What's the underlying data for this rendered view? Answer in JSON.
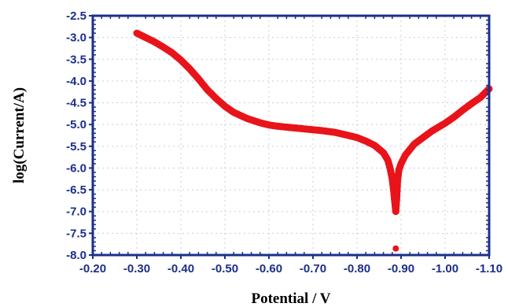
{
  "chart_data": {
    "type": "scatter",
    "title": "",
    "xlabel": "Potential / V",
    "ylabel": "log(Current/A)",
    "xlim": [
      -0.2,
      -1.1
    ],
    "ylim": [
      -8.0,
      -2.5
    ],
    "x_ticks": [
      -0.2,
      -0.3,
      -0.4,
      -0.5,
      -0.6,
      -0.7,
      -0.8,
      -0.9,
      -1.0,
      -1.1
    ],
    "x_tick_labels": [
      "-0.20",
      "-0.30",
      "-0.40",
      "-0.50",
      "-0.60",
      "-0.70",
      "-0.80",
      "-0.90",
      "-1.00",
      "-1.10"
    ],
    "y_ticks": [
      -2.5,
      -3.0,
      -3.5,
      -4.0,
      -4.5,
      -5.0,
      -5.5,
      -6.0,
      -6.5,
      -7.0,
      -7.5,
      -8.0
    ],
    "y_tick_labels": [
      "-2.5",
      "-3.0",
      "-3.5",
      "-4.0",
      "-4.5",
      "-5.0",
      "-5.5",
      "-6.0",
      "-6.5",
      "-7.0",
      "-7.5",
      "-8.0"
    ],
    "grid": true,
    "colors": {
      "points": "#e8141a",
      "axes": "#1b2f8a",
      "grid": "#c8cce0"
    },
    "series": [
      {
        "x": [
          -0.3,
          -0.32,
          -0.34,
          -0.36,
          -0.38,
          -0.4,
          -0.42,
          -0.44,
          -0.46,
          -0.48,
          -0.5,
          -0.52,
          -0.55,
          -0.58,
          -0.6,
          -0.62,
          -0.65,
          -0.68,
          -0.7,
          -0.72,
          -0.75,
          -0.78,
          -0.8,
          -0.82,
          -0.84,
          -0.86,
          -0.87,
          -0.875,
          -0.88,
          -0.883,
          -0.886,
          -0.888,
          -0.89,
          -0.892,
          -0.895,
          -0.9,
          -0.91,
          -0.93,
          -0.95,
          -0.97,
          -1.0,
          -1.02,
          -1.04,
          -1.06,
          -1.08,
          -1.1
        ],
        "y": [
          -2.9,
          -3.0,
          -3.1,
          -3.22,
          -3.35,
          -3.52,
          -3.72,
          -3.95,
          -4.2,
          -4.4,
          -4.58,
          -4.72,
          -4.86,
          -4.96,
          -5.01,
          -5.04,
          -5.07,
          -5.1,
          -5.12,
          -5.14,
          -5.18,
          -5.25,
          -5.3,
          -5.38,
          -5.48,
          -5.65,
          -5.82,
          -6.0,
          -6.25,
          -6.5,
          -6.8,
          -7.0,
          -6.7,
          -6.3,
          -6.05,
          -5.9,
          -5.7,
          -5.45,
          -5.3,
          -5.15,
          -4.97,
          -4.83,
          -4.67,
          -4.52,
          -4.38,
          -4.18
        ]
      },
      {
        "x": [
          -0.888
        ],
        "y": [
          -7.85
        ]
      }
    ]
  }
}
